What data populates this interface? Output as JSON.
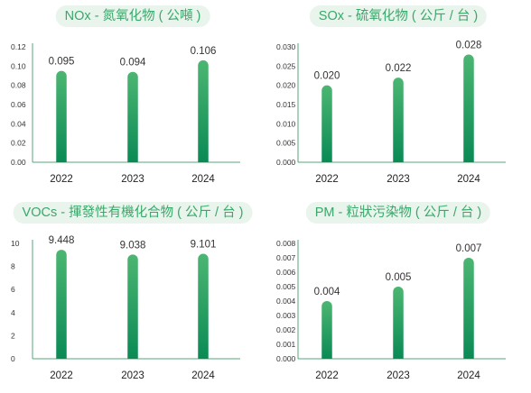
{
  "chart_data": [
    {
      "type": "bar",
      "title": "NOx - 氮氧化物 ( 公噸 )",
      "categories": [
        "2022",
        "2023",
        "2024"
      ],
      "values": [
        0.095,
        0.094,
        0.106
      ],
      "value_labels": [
        "0.095",
        "0.094",
        "0.106"
      ],
      "yticks": [
        "0.00",
        "0.02",
        "0.04",
        "0.06",
        "0.08",
        "0.10",
        "0.12"
      ],
      "ylim": [
        0,
        0.12
      ],
      "grid": false,
      "legend": "none"
    },
    {
      "type": "bar",
      "title": "SOx - 硫氧化物 ( 公斤 / 台 )",
      "categories": [
        "2022",
        "2023",
        "2024"
      ],
      "values": [
        0.02,
        0.022,
        0.028
      ],
      "value_labels": [
        "0.020",
        "0.022",
        "0.028"
      ],
      "yticks": [
        "0.000",
        "0.005",
        "0.010",
        "0.015",
        "0.020",
        "0.025",
        "0.030"
      ],
      "ylim": [
        0,
        0.03
      ],
      "grid": false,
      "legend": "none"
    },
    {
      "type": "bar",
      "title": "VOCs - 揮發性有機化合物 ( 公斤 / 台 )",
      "categories": [
        "2022",
        "2023",
        "2024"
      ],
      "values": [
        9.448,
        9.038,
        9.101
      ],
      "value_labels": [
        "9.448",
        "9.038",
        "9.101"
      ],
      "yticks": [
        "0",
        "2",
        "4",
        "6",
        "8",
        "10"
      ],
      "ylim": [
        0,
        10
      ],
      "grid": false,
      "legend": "none"
    },
    {
      "type": "bar",
      "title": "PM - 粒狀污染物 ( 公斤 / 台 )",
      "categories": [
        "2022",
        "2023",
        "2024"
      ],
      "values": [
        0.004,
        0.005,
        0.007
      ],
      "value_labels": [
        "0.004",
        "0.005",
        "0.007"
      ],
      "yticks": [
        "0.000",
        "0.001",
        "0.002",
        "0.003",
        "0.004",
        "0.005",
        "0.006",
        "0.007",
        "0.008"
      ],
      "ylim": [
        0,
        0.008
      ],
      "grid": false,
      "legend": "none"
    }
  ],
  "colors": {
    "bar_top": "#4cb672",
    "bar_bottom": "#0a8a55",
    "title_background": "#e9f4ec",
    "title_text": "#3aa86a",
    "axis": "#56a57a"
  }
}
